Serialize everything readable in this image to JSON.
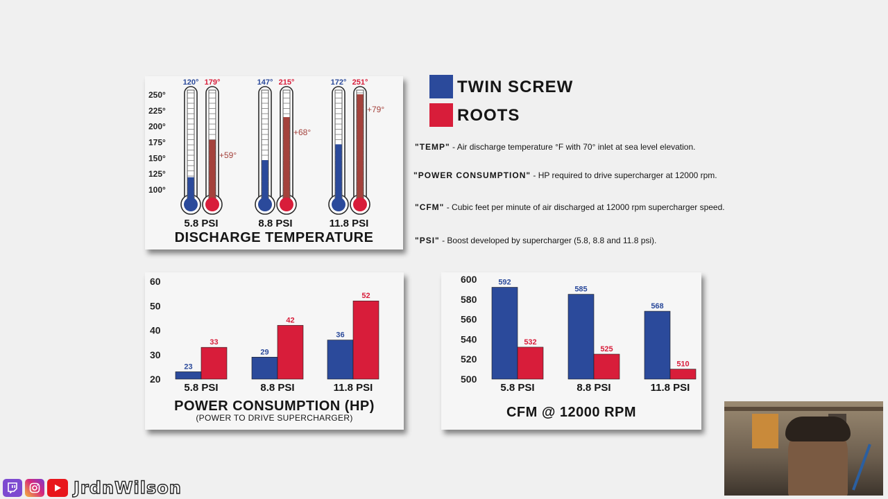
{
  "colors": {
    "twin_screw": "#2b4a9b",
    "roots": "#d81d3a",
    "roots_fill": "#a4423c"
  },
  "legend": {
    "twin_screw_label": "TWIN SCREW",
    "roots_label": "ROOTS"
  },
  "definitions": [
    {
      "term": "\"TEMP\"",
      "text": " - Air discharge temperature °F with 70° inlet at sea level elevation."
    },
    {
      "term": "\"POWER CONSUMPTION\"",
      "text": " - HP required to drive supercharger at 12000 rpm."
    },
    {
      "term": "\"CFM\"",
      "text": " - Cubic feet per minute of air discharged at 12000 rpm supercharger speed."
    },
    {
      "term": "\"PSI\"",
      "text": " - Boost developed by supercharger (5.8, 8.8 and 11.8 psi)."
    }
  ],
  "chart_data": [
    {
      "type": "bar",
      "title": "DISCHARGE TEMPERATURE",
      "categories": [
        "5.8 PSI",
        "8.8 PSI",
        "11.8 PSI"
      ],
      "series": [
        {
          "name": "TWIN SCREW",
          "values": [
            120,
            147,
            172
          ],
          "labels": [
            "120°",
            "147°",
            "172°"
          ]
        },
        {
          "name": "ROOTS",
          "values": [
            179,
            215,
            251
          ],
          "labels": [
            "179°",
            "215°",
            "251°"
          ]
        }
      ],
      "differences": [
        "+59°",
        "+68°",
        "+79°"
      ],
      "yticks": [
        "250°",
        "225°",
        "200°",
        "175°",
        "150°",
        "125°",
        "100°"
      ],
      "ylim": [
        100,
        250
      ]
    },
    {
      "type": "bar",
      "title": "POWER CONSUMPTION (HP)",
      "subtitle": "(POWER TO DRIVE SUPERCHARGER)",
      "categories": [
        "5.8 PSI",
        "8.8 PSI",
        "11.8 PSI"
      ],
      "series": [
        {
          "name": "TWIN SCREW",
          "values": [
            23,
            29,
            36
          ]
        },
        {
          "name": "ROOTS",
          "values": [
            33,
            42,
            52
          ]
        }
      ],
      "yticks": [
        "60",
        "50",
        "40",
        "30",
        "20"
      ],
      "ylim": [
        20,
        60
      ]
    },
    {
      "type": "bar",
      "title": "CFM @ 12000 RPM",
      "categories": [
        "5.8 PSI",
        "8.8 PSI",
        "11.8 PSI"
      ],
      "series": [
        {
          "name": "TWIN SCREW",
          "values": [
            592,
            585,
            568
          ]
        },
        {
          "name": "ROOTS",
          "values": [
            532,
            525,
            510
          ]
        }
      ],
      "yticks": [
        "600",
        "580",
        "560",
        "540",
        "520",
        "500"
      ],
      "ylim": [
        500,
        600
      ]
    }
  ],
  "stream": {
    "channel_name": "JrdnWilson"
  }
}
